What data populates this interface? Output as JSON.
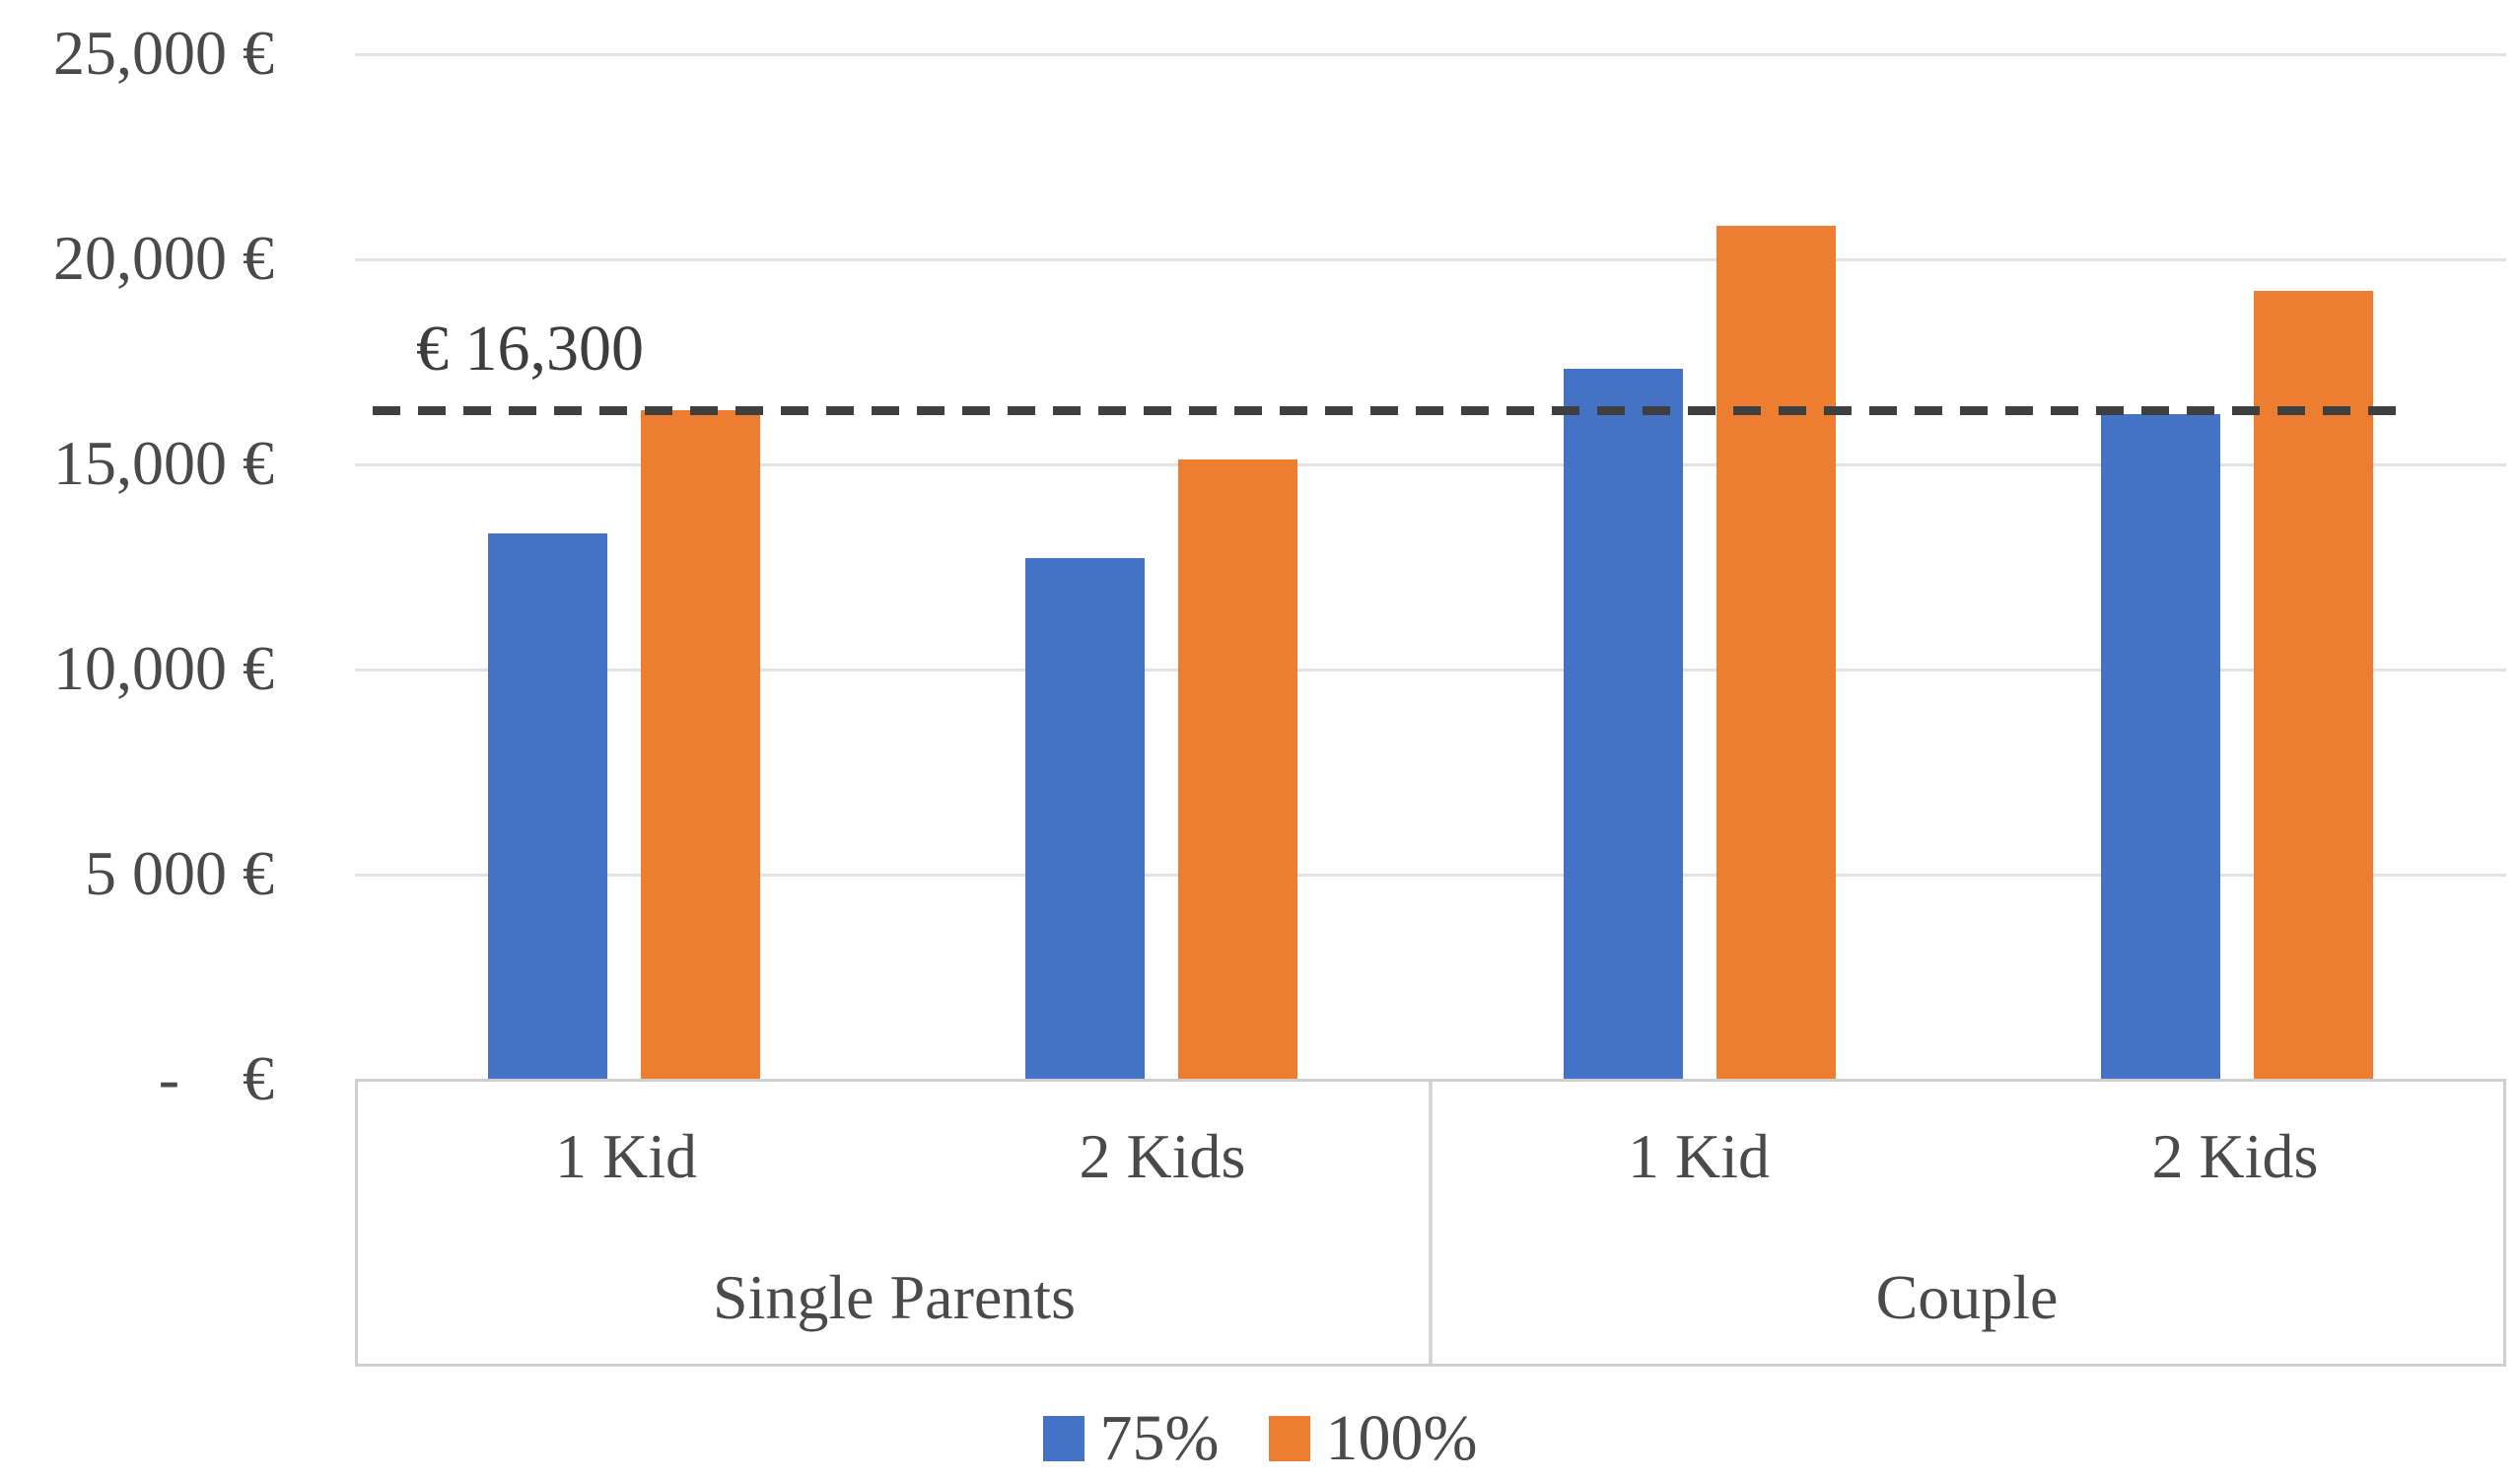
{
  "chart_data": {
    "type": "bar",
    "title": "",
    "y_axis": {
      "min": 0,
      "max": 25000,
      "tick_step": 5000,
      "grid": true,
      "tick_labels": [
        "25,000 €",
        "20,000 €",
        "15,000 €",
        "10,000 €",
        "5 000 €",
        "-    €"
      ]
    },
    "groups": [
      {
        "label": "Single Parents",
        "categories": [
          "1 Kid",
          "2 Kids"
        ]
      },
      {
        "label": "Couple",
        "categories": [
          "1 Kid",
          "2 Kids"
        ]
      }
    ],
    "series": [
      {
        "name": "75%",
        "color": "#4472C4",
        "values": [
          13300,
          12700,
          17300,
          16200
        ]
      },
      {
        "name": "100%",
        "color": "#ED7D31",
        "values": [
          16300,
          15100,
          20800,
          19200
        ]
      }
    ],
    "reference_line": {
      "label": "€ 16,300",
      "value": 16300,
      "style": "dashed",
      "color": "#3f3f3f"
    },
    "legend": {
      "position": "bottom",
      "entries": [
        "75%",
        "100%"
      ]
    },
    "colors": {
      "grid": "#e2e2e2",
      "axis_box": "#cfcfcf",
      "text": "#4a4a4a"
    }
  }
}
